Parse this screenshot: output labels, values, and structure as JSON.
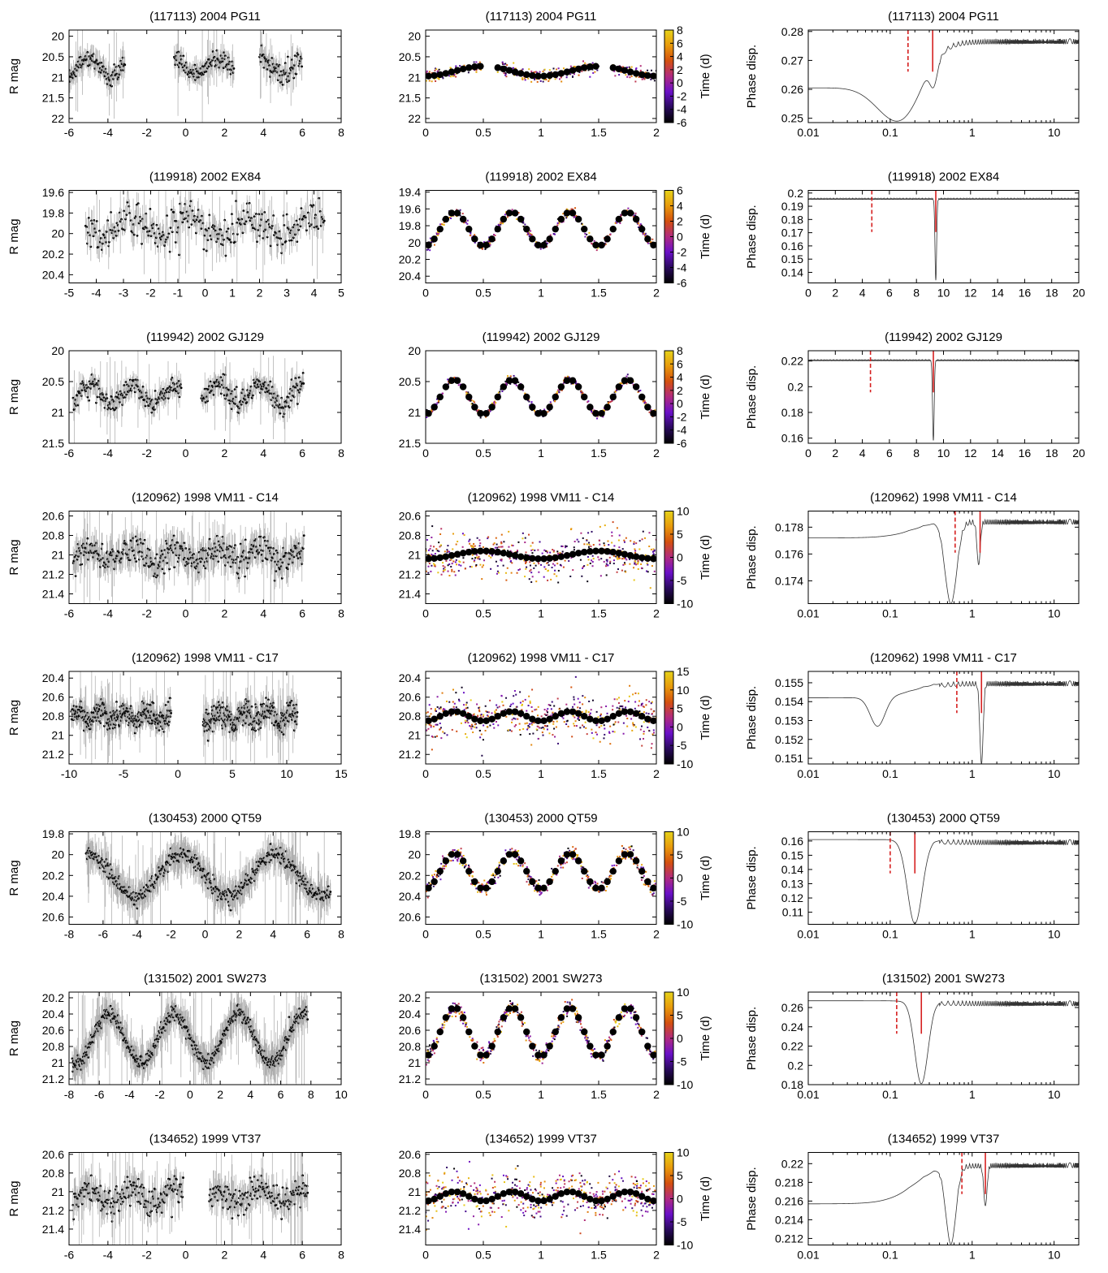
{
  "figure": {
    "colorbar_label": "Time (d)",
    "lightcurve_ylabel": "R mag",
    "periodogram_ylabel": "Phase disp."
  },
  "colors": {
    "folded_mean_point": "#000000",
    "periodogram_line": "#333333",
    "period_marker": "#d62020",
    "colormap": [
      "#000000",
      "#2a0a5e",
      "#6a10c8",
      "#b02a80",
      "#d4500f",
      "#e89a0c",
      "#e6d21a"
    ]
  },
  "chart_data": [
    {
      "row": 0,
      "panel": "lightcurve",
      "type": "scatter",
      "title": "(117113) 2004 PG11",
      "ylabel": "R mag",
      "xlim": [
        -6,
        8
      ],
      "ylim": [
        22.1,
        19.85
      ],
      "xticks": [
        -6,
        -4,
        -2,
        0,
        2,
        4,
        6,
        8
      ],
      "yticks": [
        20,
        20.5,
        21,
        21.5,
        22
      ],
      "segments": [
        [
          -6,
          -3.1
        ],
        [
          -0.6,
          2.5
        ],
        [
          3.8,
          6.0
        ]
      ],
      "mean": 20.75,
      "amplitude": 0.2,
      "scatter": 0.25,
      "errorbar_size": 0.35
    },
    {
      "row": 0,
      "panel": "folded",
      "type": "scatter",
      "title": "(117113) 2004 PG11",
      "xlim": [
        0,
        2
      ],
      "ylim": [
        22.1,
        19.85
      ],
      "xticks": [
        0,
        0.5,
        1,
        1.5,
        2
      ],
      "yticks": [
        20,
        20.5,
        21,
        21.5,
        22
      ],
      "colorbar": {
        "range": [
          -6,
          8
        ],
        "ticks": [
          -6,
          -4,
          -2,
          0,
          2,
          4,
          6,
          8
        ],
        "label": "Time (d)"
      },
      "gaps": [
        [
          0.5,
          0.62
        ],
        [
          1.5,
          1.62
        ]
      ],
      "mean": 20.85,
      "amplitude": 0.12,
      "cycles": 2,
      "scatter": 0.15
    },
    {
      "row": 0,
      "panel": "periodogram",
      "type": "line",
      "title": "(117113) 2004 PG11",
      "ylabel": "Phase disp.",
      "xscale": "log",
      "xlim": [
        0.01,
        20
      ],
      "ylim": [
        0.2485,
        0.2805
      ],
      "xticks": [
        0.01,
        0.1,
        1,
        10
      ],
      "yticks": [
        0.25,
        0.26,
        0.27,
        0.28
      ],
      "baseline": 0.2605,
      "plateau": 0.2775,
      "dips": [
        {
          "x": 0.12,
          "y": 0.249,
          "w": 0.25
        },
        {
          "x": 0.33,
          "y": 0.2605,
          "w": 0.05
        }
      ],
      "markers": [
        {
          "x": 0.165,
          "style": "dashed"
        },
        {
          "x": 0.33,
          "style": "solid"
        }
      ]
    },
    {
      "row": 1,
      "panel": "lightcurve",
      "type": "scatter",
      "title": "(119918) 2002 EX84",
      "ylabel": "R mag",
      "xlim": [
        -5,
        5
      ],
      "ylim": [
        20.48,
        19.58
      ],
      "xticks": [
        -5,
        -4,
        -3,
        -2,
        -1,
        0,
        1,
        2,
        3,
        4,
        5
      ],
      "yticks": [
        19.6,
        19.8,
        20,
        20.2,
        20.4
      ],
      "segments": [
        [
          -4.4,
          4.4
        ]
      ],
      "mean": 19.93,
      "amplitude": 0.1,
      "scatter": 0.2,
      "errorbar_size": 0.15
    },
    {
      "row": 1,
      "panel": "folded",
      "type": "scatter",
      "title": "(119918) 2002 EX84",
      "xlim": [
        0,
        2
      ],
      "ylim": [
        20.48,
        19.38
      ],
      "xticks": [
        0,
        0.5,
        1,
        1.5,
        2
      ],
      "yticks": [
        19.4,
        19.6,
        19.8,
        20,
        20.2,
        20.4
      ],
      "colorbar": {
        "range": [
          -6,
          6
        ],
        "ticks": [
          -6,
          -4,
          -2,
          0,
          2,
          4,
          6
        ],
        "label": "Time (d)"
      },
      "gaps": [],
      "mean": 19.84,
      "amplitude": 0.2,
      "cycles": 4,
      "scatter": 0.05
    },
    {
      "row": 1,
      "panel": "periodogram",
      "type": "line",
      "title": "(119918) 2002 EX84",
      "ylabel": "Phase disp.",
      "xscale": "linear",
      "xlim": [
        0,
        20
      ],
      "ylim": [
        0.132,
        0.202
      ],
      "xticks": [
        0,
        2,
        4,
        6,
        8,
        10,
        12,
        14,
        16,
        18,
        20
      ],
      "yticks": [
        0.14,
        0.15,
        0.16,
        0.17,
        0.18,
        0.19,
        0.2
      ],
      "baseline": 0.196,
      "plateau": 0.196,
      "dips": [
        {
          "x": 9.43,
          "y": 0.134,
          "w": 0.06
        }
      ],
      "markers": [
        {
          "x": 4.7,
          "style": "dashed"
        },
        {
          "x": 9.43,
          "style": "solid"
        }
      ]
    },
    {
      "row": 2,
      "panel": "lightcurve",
      "type": "scatter",
      "title": "(119942) 2002 GJ129",
      "ylabel": "R mag",
      "xlim": [
        -6,
        8
      ],
      "ylim": [
        21.5,
        20
      ],
      "xticks": [
        -6,
        -4,
        -2,
        0,
        2,
        4,
        6,
        8
      ],
      "yticks": [
        20,
        20.5,
        21,
        21.5
      ],
      "segments": [
        [
          -5.8,
          -0.2
        ],
        [
          0.8,
          6.1
        ]
      ],
      "mean": 20.7,
      "amplitude": 0.15,
      "scatter": 0.2,
      "errorbar_size": 0.2
    },
    {
      "row": 2,
      "panel": "folded",
      "type": "scatter",
      "title": "(119942) 2002 GJ129",
      "xlim": [
        0,
        2
      ],
      "ylim": [
        21.5,
        20
      ],
      "xticks": [
        0,
        0.5,
        1,
        1.5,
        2
      ],
      "yticks": [
        20,
        20.5,
        21,
        21.5
      ],
      "colorbar": {
        "range": [
          -6,
          8
        ],
        "ticks": [
          -6,
          -4,
          -2,
          0,
          2,
          4,
          6,
          8
        ],
        "label": "Time (d)"
      },
      "gaps": [],
      "mean": 20.75,
      "amplitude": 0.28,
      "cycles": 4,
      "scatter": 0.06
    },
    {
      "row": 2,
      "panel": "periodogram",
      "type": "line",
      "title": "(119942) 2002 GJ129",
      "ylabel": "Phase disp.",
      "xscale": "linear",
      "xlim": [
        0,
        20
      ],
      "ylim": [
        0.156,
        0.228
      ],
      "xticks": [
        0,
        2,
        4,
        6,
        8,
        10,
        12,
        14,
        16,
        18,
        20
      ],
      "yticks": [
        0.16,
        0.18,
        0.2,
        0.22
      ],
      "baseline": 0.221,
      "plateau": 0.221,
      "dips": [
        {
          "x": 9.25,
          "y": 0.158,
          "w": 0.06
        }
      ],
      "markers": [
        {
          "x": 4.6,
          "style": "dashed"
        },
        {
          "x": 9.25,
          "style": "solid"
        }
      ]
    },
    {
      "row": 3,
      "panel": "lightcurve",
      "type": "scatter",
      "title": "(120962) 1998 VM11 - C14",
      "ylabel": "R mag",
      "xlim": [
        -6,
        8
      ],
      "ylim": [
        21.5,
        20.55
      ],
      "xticks": [
        -6,
        -4,
        -2,
        0,
        2,
        4,
        6,
        8
      ],
      "yticks": [
        20.6,
        20.8,
        21,
        21.2,
        21.4
      ],
      "segments": [
        [
          -5.8,
          6.1
        ]
      ],
      "mean": 21.0,
      "amplitude": 0.07,
      "scatter": 0.16,
      "errorbar_size": 0.2
    },
    {
      "row": 3,
      "panel": "folded",
      "type": "scatter",
      "title": "(120962) 1998 VM11 - C14",
      "xlim": [
        0,
        2
      ],
      "ylim": [
        21.5,
        20.55
      ],
      "xticks": [
        0,
        0.5,
        1,
        1.5,
        2
      ],
      "yticks": [
        20.6,
        20.8,
        21,
        21.2,
        21.4
      ],
      "colorbar": {
        "range": [
          -10,
          10
        ],
        "ticks": [
          -10,
          -5,
          0,
          5,
          10
        ],
        "label": "Time (d)"
      },
      "gaps": [],
      "mean": 21.0,
      "amplitude": 0.04,
      "cycles": 2,
      "scatter": 0.22
    },
    {
      "row": 3,
      "panel": "periodogram",
      "type": "line",
      "title": "(120962) 1998 VM11 - C14",
      "ylabel": "Phase disp.",
      "xscale": "log",
      "xlim": [
        0.01,
        20
      ],
      "ylim": [
        0.1723,
        0.1792
      ],
      "xticks": [
        0.01,
        0.1,
        1,
        10
      ],
      "yticks": [
        0.174,
        0.176,
        0.178
      ],
      "baseline": 0.1772,
      "plateau": 0.1786,
      "dips": [
        {
          "x": 0.55,
          "y": 0.1723,
          "w": 0.07
        },
        {
          "x": 1.2,
          "y": 0.1752,
          "w": 0.02
        }
      ],
      "markers": [
        {
          "x": 0.62,
          "style": "dashed"
        },
        {
          "x": 1.25,
          "style": "solid"
        }
      ]
    },
    {
      "row": 4,
      "panel": "lightcurve",
      "type": "scatter",
      "title": "(120962) 1998 VM11 - C17",
      "ylabel": "R mag",
      "xlim": [
        -10,
        15
      ],
      "ylim": [
        21.3,
        20.33
      ],
      "xticks": [
        -10,
        -5,
        0,
        5,
        10,
        15
      ],
      "yticks": [
        20.4,
        20.6,
        20.8,
        21,
        21.2
      ],
      "segments": [
        [
          -9.8,
          -0.6
        ],
        [
          2.3,
          11.0
        ]
      ],
      "mean": 20.8,
      "amplitude": 0.05,
      "scatter": 0.15,
      "errorbar_size": 0.15
    },
    {
      "row": 4,
      "panel": "folded",
      "type": "scatter",
      "title": "(120962) 1998 VM11 - C17",
      "xlim": [
        0,
        2
      ],
      "ylim": [
        21.3,
        20.33
      ],
      "xticks": [
        0,
        0.5,
        1,
        1.5,
        2
      ],
      "yticks": [
        20.4,
        20.6,
        20.8,
        21,
        21.2
      ],
      "colorbar": {
        "range": [
          -10,
          15
        ],
        "ticks": [
          -10,
          -5,
          0,
          5,
          10,
          15
        ],
        "label": "Time (d)"
      },
      "gaps": [],
      "mean": 20.8,
      "amplitude": 0.05,
      "cycles": 4,
      "scatter": 0.22
    },
    {
      "row": 4,
      "panel": "periodogram",
      "type": "line",
      "title": "(120962) 1998 VM11 - C17",
      "ylabel": "Phase disp.",
      "xscale": "log",
      "xlim": [
        0.01,
        20
      ],
      "ylim": [
        0.1507,
        0.1556
      ],
      "xticks": [
        0.01,
        0.1,
        1,
        10
      ],
      "yticks": [
        0.151,
        0.152,
        0.153,
        0.154,
        0.155
      ],
      "baseline": 0.1542,
      "plateau": 0.1551,
      "dips": [
        {
          "x": 0.07,
          "y": 0.1527,
          "w": 0.09
        },
        {
          "x": 1.3,
          "y": 0.1507,
          "w": 0.02
        }
      ],
      "markers": [
        {
          "x": 0.65,
          "style": "dashed"
        },
        {
          "x": 1.3,
          "style": "solid"
        }
      ]
    },
    {
      "row": 5,
      "panel": "lightcurve",
      "type": "scatter",
      "title": "(130453) 2000 QT59",
      "ylabel": "R mag",
      "xlim": [
        -8,
        8
      ],
      "ylim": [
        20.67,
        19.78
      ],
      "xticks": [
        -8,
        -6,
        -4,
        -2,
        0,
        2,
        4,
        6,
        8
      ],
      "yticks": [
        19.8,
        20,
        20.2,
        20.4,
        20.6
      ],
      "segments": [
        [
          -7.0,
          7.4
        ]
      ],
      "mean": 20.2,
      "amplitude": 0.2,
      "scatter": 0.08,
      "errorbar_size": 0.2,
      "period": 5.5
    },
    {
      "row": 5,
      "panel": "folded",
      "type": "scatter",
      "title": "(130453) 2000 QT59",
      "xlim": [
        0,
        2
      ],
      "ylim": [
        20.67,
        19.78
      ],
      "xticks": [
        0,
        0.5,
        1,
        1.5,
        2
      ],
      "yticks": [
        19.8,
        20,
        20.2,
        20.4,
        20.6
      ],
      "colorbar": {
        "range": [
          -10,
          10
        ],
        "ticks": [
          -10,
          -5,
          0,
          5,
          10
        ],
        "label": "Time (d)"
      },
      "gaps": [],
      "mean": 20.16,
      "amplitude": 0.17,
      "cycles": 4,
      "scatter": 0.07
    },
    {
      "row": 5,
      "panel": "periodogram",
      "type": "line",
      "title": "(130453) 2000 QT59",
      "ylabel": "Phase disp.",
      "xscale": "log",
      "xlim": [
        0.01,
        20
      ],
      "ylim": [
        0.1015,
        0.1665
      ],
      "xticks": [
        0.01,
        0.1,
        1,
        10
      ],
      "yticks": [
        0.11,
        0.12,
        0.13,
        0.14,
        0.15,
        0.16
      ],
      "baseline": 0.161,
      "plateau": 0.161,
      "dips": [
        {
          "x": 0.2,
          "y": 0.102,
          "w": 0.09
        }
      ],
      "markers": [
        {
          "x": 0.1,
          "style": "dashed"
        },
        {
          "x": 0.2,
          "style": "solid"
        }
      ]
    },
    {
      "row": 6,
      "panel": "lightcurve",
      "type": "scatter",
      "title": "(131502) 2001 SW273",
      "ylabel": "R mag",
      "xlim": [
        -8,
        10
      ],
      "ylim": [
        21.27,
        20.13
      ],
      "xticks": [
        -8,
        -6,
        -4,
        -2,
        0,
        2,
        4,
        6,
        8,
        10
      ],
      "yticks": [
        20.2,
        20.4,
        20.6,
        20.8,
        21,
        21.2
      ],
      "segments": [
        [
          -7.8,
          7.8
        ]
      ],
      "mean": 20.7,
      "amplitude": 0.3,
      "scatter": 0.1,
      "errorbar_size": 0.25,
      "period": 4.3
    },
    {
      "row": 6,
      "panel": "folded",
      "type": "scatter",
      "title": "(131502) 2001 SW273",
      "xlim": [
        0,
        2
      ],
      "ylim": [
        21.27,
        20.13
      ],
      "xticks": [
        0,
        0.5,
        1,
        1.5,
        2
      ],
      "yticks": [
        20.2,
        20.4,
        20.6,
        20.8,
        21,
        21.2
      ],
      "colorbar": {
        "range": [
          -10,
          10
        ],
        "ticks": [
          -10,
          -5,
          0,
          5,
          10
        ],
        "label": "Time (d)"
      },
      "gaps": [],
      "mean": 20.62,
      "amplitude": 0.3,
      "cycles": 4,
      "scatter": 0.1
    },
    {
      "row": 6,
      "panel": "periodogram",
      "type": "line",
      "title": "(131502) 2001 SW273",
      "ylabel": "Phase disp.",
      "xscale": "log",
      "xlim": [
        0.01,
        20
      ],
      "ylim": [
        0.18,
        0.276
      ],
      "xticks": [
        0.01,
        0.1,
        1,
        10
      ],
      "yticks": [
        0.18,
        0.2,
        0.22,
        0.24,
        0.26
      ],
      "baseline": 0.267,
      "plateau": 0.267,
      "dips": [
        {
          "x": 0.24,
          "y": 0.181,
          "w": 0.08
        }
      ],
      "markers": [
        {
          "x": 0.12,
          "style": "dashed"
        },
        {
          "x": 0.24,
          "style": "solid"
        }
      ]
    },
    {
      "row": 7,
      "panel": "lightcurve",
      "type": "scatter",
      "title": "(134652) 1999 VT37",
      "ylabel": "R mag",
      "xlim": [
        -6,
        8
      ],
      "ylim": [
        21.57,
        20.58
      ],
      "xticks": [
        -6,
        -4,
        -2,
        0,
        2,
        4,
        6,
        8
      ],
      "yticks": [
        20.6,
        20.8,
        21,
        21.2,
        21.4
      ],
      "segments": [
        [
          -5.8,
          -0.1
        ],
        [
          1.2,
          6.3
        ]
      ],
      "mean": 21.05,
      "amplitude": 0.08,
      "scatter": 0.17,
      "errorbar_size": 0.2
    },
    {
      "row": 7,
      "panel": "folded",
      "type": "scatter",
      "title": "(134652) 1999 VT37",
      "xlim": [
        0,
        2
      ],
      "ylim": [
        21.57,
        20.58
      ],
      "xticks": [
        0,
        0.5,
        1,
        1.5,
        2
      ],
      "yticks": [
        20.6,
        20.8,
        21,
        21.2,
        21.4
      ],
      "colorbar": {
        "range": [
          -10,
          10
        ],
        "ticks": [
          -10,
          -5,
          0,
          5,
          10
        ],
        "label": "Time (d)"
      },
      "gaps": [],
      "mean": 21.05,
      "amplitude": 0.05,
      "cycles": 4,
      "scatter": 0.22
    },
    {
      "row": 7,
      "panel": "periodogram",
      "type": "line",
      "title": "(134652) 1999 VT37",
      "ylabel": "Phase disp.",
      "xscale": "log",
      "xlim": [
        0.01,
        20
      ],
      "ylim": [
        0.2113,
        0.2212
      ],
      "xticks": [
        0.01,
        0.1,
        1,
        10
      ],
      "yticks": [
        0.212,
        0.214,
        0.216,
        0.218,
        0.22
      ],
      "baseline": 0.2157,
      "plateau": 0.2201,
      "dips": [
        {
          "x": 0.55,
          "y": 0.2114,
          "w": 0.06
        },
        {
          "x": 1.45,
          "y": 0.2155,
          "w": 0.02
        }
      ],
      "markers": [
        {
          "x": 0.75,
          "style": "dashed"
        },
        {
          "x": 1.45,
          "style": "solid"
        }
      ]
    }
  ]
}
